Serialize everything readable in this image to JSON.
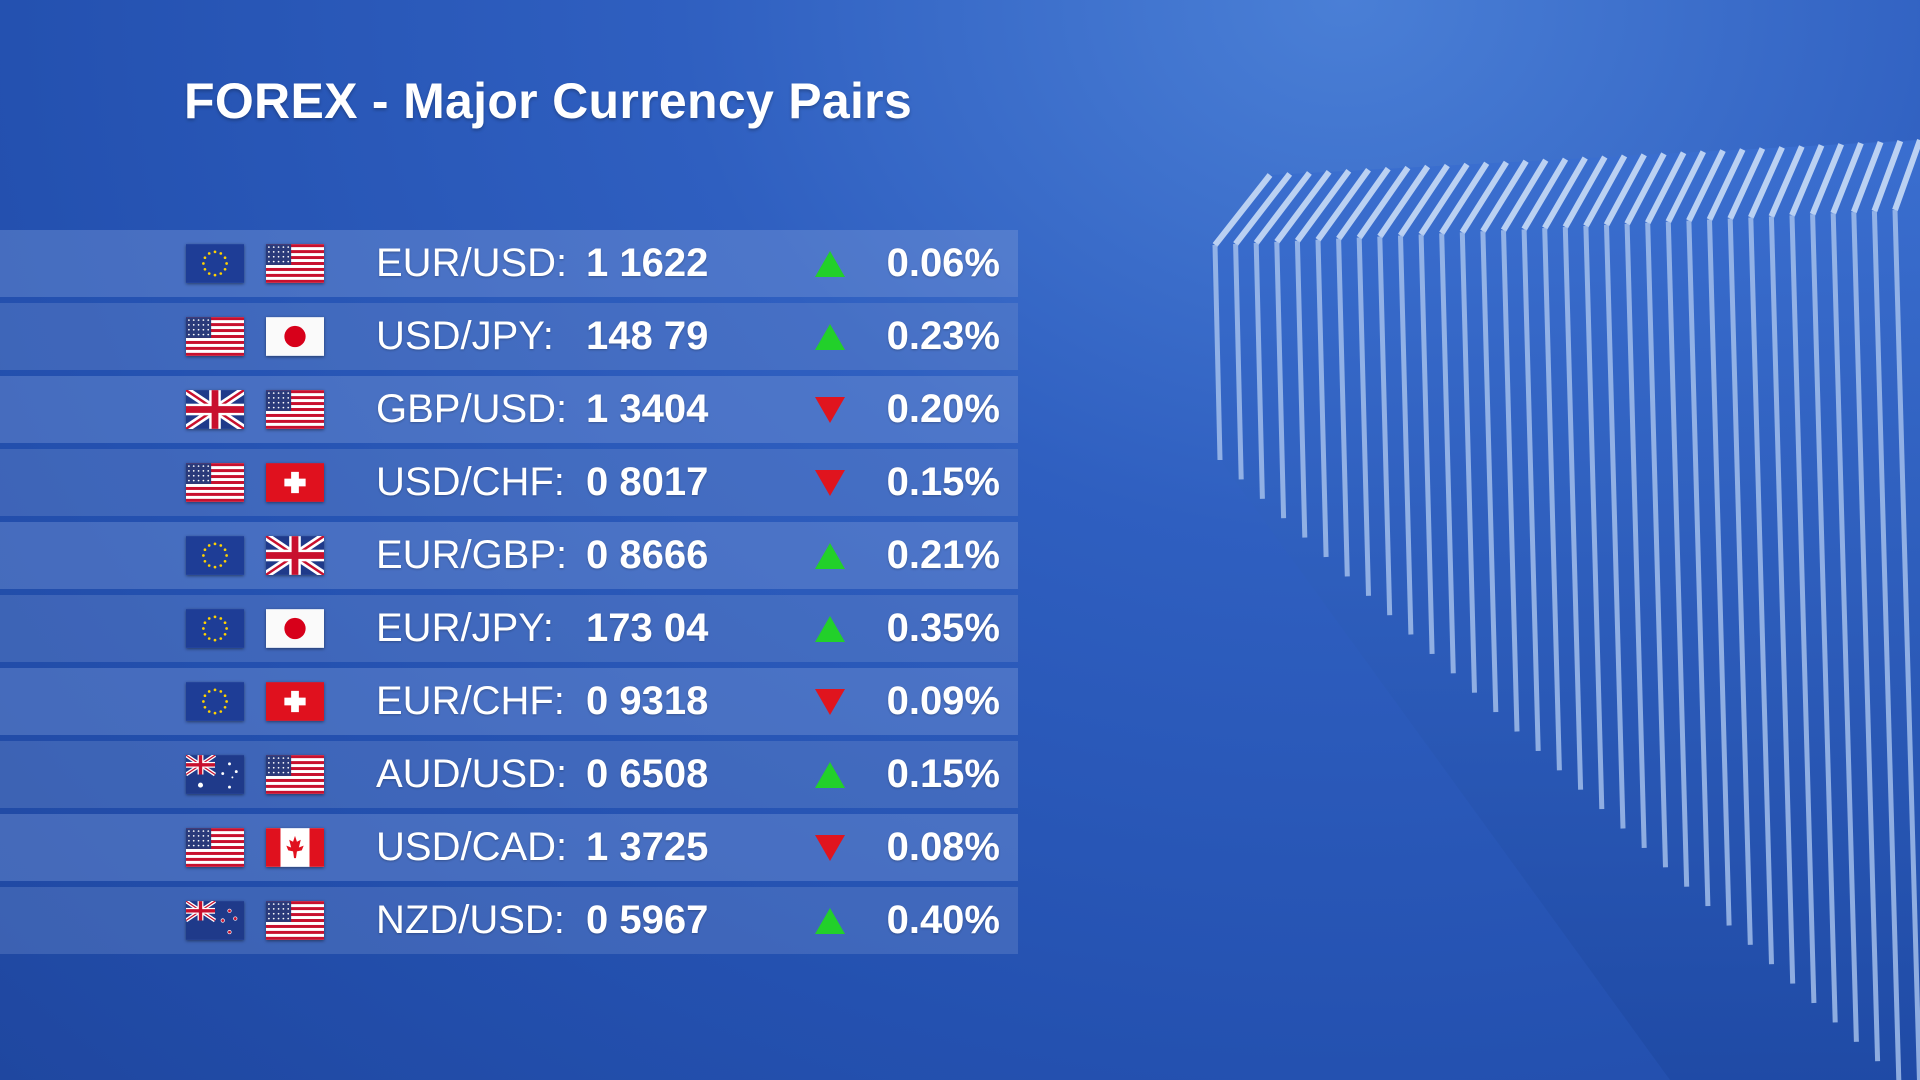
{
  "title": "FOREX - Major Currency Pairs",
  "colors": {
    "up": "#22d02a",
    "down": "#e0141e"
  },
  "rows": [
    {
      "flags": [
        "eu-flag-icon",
        "us-flag-icon"
      ],
      "pair": "EUR/USD:",
      "rate": "1 1622",
      "direction": "up",
      "change": "0.06%"
    },
    {
      "flags": [
        "us-flag-icon",
        "jp-flag-icon"
      ],
      "pair": "USD/JPY:",
      "rate": "148 79",
      "direction": "up",
      "change": "0.23%"
    },
    {
      "flags": [
        "gb-flag-icon",
        "us-flag-icon"
      ],
      "pair": "GBP/USD:",
      "rate": "1 3404",
      "direction": "down",
      "change": "0.20%"
    },
    {
      "flags": [
        "us-flag-icon",
        "ch-flag-icon"
      ],
      "pair": "USD/CHF:",
      "rate": "0 8017",
      "direction": "down",
      "change": "0.15%"
    },
    {
      "flags": [
        "eu-flag-icon",
        "gb-flag-icon"
      ],
      "pair": "EUR/GBP:",
      "rate": "0 8666",
      "direction": "up",
      "change": "0.21%"
    },
    {
      "flags": [
        "eu-flag-icon",
        "jp-flag-icon"
      ],
      "pair": "EUR/JPY:",
      "rate": "173 04",
      "direction": "up",
      "change": "0.35%"
    },
    {
      "flags": [
        "eu-flag-icon",
        "ch-flag-icon"
      ],
      "pair": "EUR/CHF:",
      "rate": "0 9318",
      "direction": "down",
      "change": "0.09%"
    },
    {
      "flags": [
        "au-flag-icon",
        "us-flag-icon"
      ],
      "pair": "AUD/USD:",
      "rate": "0 6508",
      "direction": "up",
      "change": "0.15%"
    },
    {
      "flags": [
        "us-flag-icon",
        "ca-flag-icon"
      ],
      "pair": "USD/CAD:",
      "rate": "1 3725",
      "direction": "down",
      "change": "0.08%"
    },
    {
      "flags": [
        "nz-flag-icon",
        "us-flag-icon"
      ],
      "pair": "NZD/USD:",
      "rate": "0 5967",
      "direction": "up",
      "change": "0.40%"
    }
  ]
}
